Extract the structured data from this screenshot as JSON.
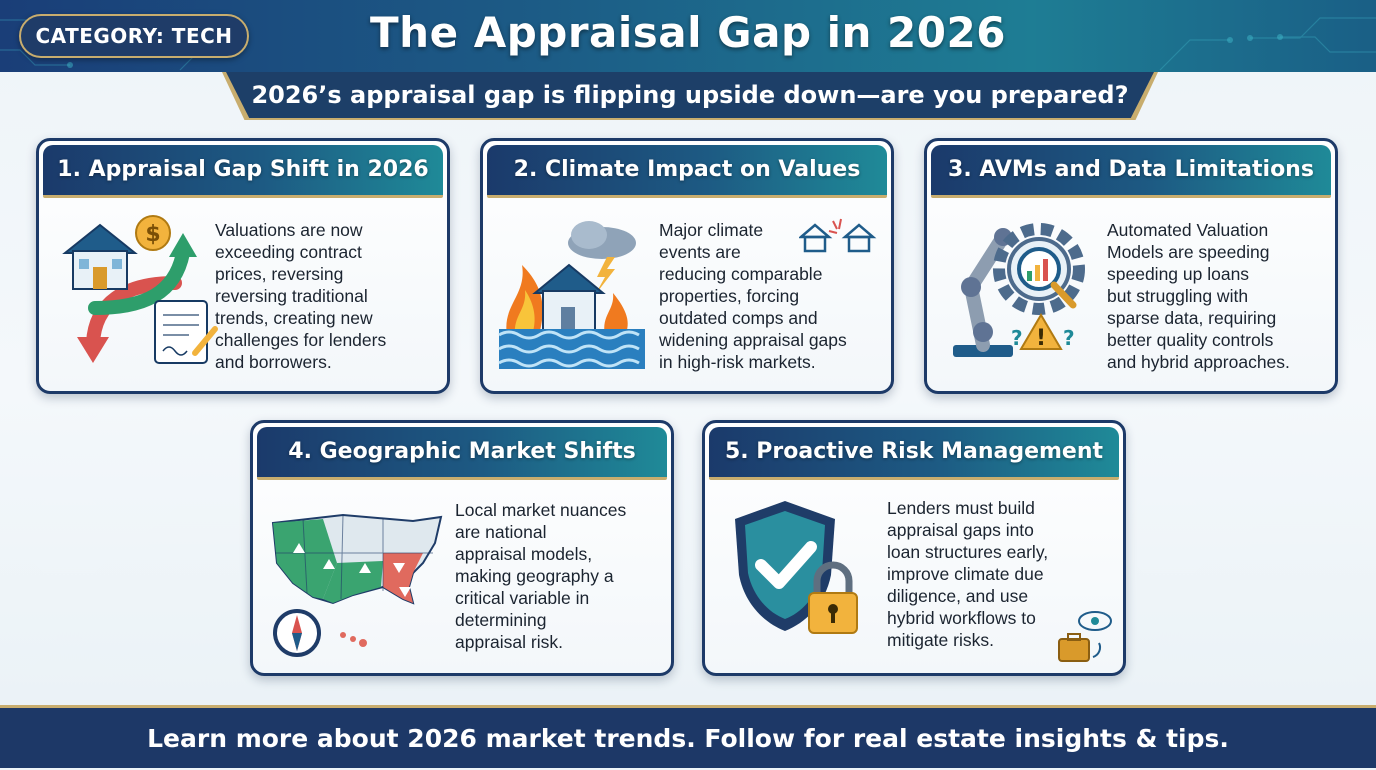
{
  "header": {
    "category_label": "CATEGORY: TECH",
    "title": "The Appraisal Gap in 2026",
    "subtitle": "2026’s appraisal gap is flipping upside down—are you prepared?"
  },
  "cards": [
    {
      "title": "1. Appraisal Gap Shift in 2026",
      "icon": "house-dollar-arrows-icon",
      "lines": [
        "Valuations are now",
        "exceeding contract",
        "prices, reversing",
        "reversing traditional",
        "trends, creating new",
        "challenges for lenders",
        "and borrowers."
      ]
    },
    {
      "title": "2. Climate Impact on Values",
      "icon": "house-fire-flood-icon",
      "lines": [
        "Major climate",
        "events are",
        "reducing comparable",
        "properties, forcing",
        "outdated comps and",
        "widening appraisal gaps",
        "in high-risk markets."
      ]
    },
    {
      "title": "3. AVMs and Data Limitations",
      "icon": "robot-arm-gear-icon",
      "lines": [
        "Automated Valuation",
        "Models are speeding",
        "speeding up loans",
        "but struggling with",
        "sparse data, requiring",
        "better quality controls",
        "and hybrid approaches."
      ]
    },
    {
      "title": "4. Geographic Market Shifts",
      "icon": "us-map-compass-icon",
      "lines": [
        "Local market nuances",
        "are national",
        "appraisal models,",
        "making geography a",
        "critical variable in",
        "determining",
        "appraisal risk."
      ]
    },
    {
      "title": "5. Proactive Risk Management",
      "icon": "shield-lock-icon",
      "lines": [
        "Lenders must build",
        "appraisal gaps into",
        "loan structures early,",
        "improve climate due",
        "diligence, and use",
        "hybrid workflows to",
        "mitigate risks."
      ]
    }
  ],
  "footer": {
    "text": "Learn more about 2026 market trends. Follow for real estate insights & tips."
  },
  "colors": {
    "navy": "#1d3867",
    "teal": "#1f8a98",
    "gold": "#c8ad6e",
    "red_arrow": "#d9534f",
    "green_arrow": "#2e9e6b"
  }
}
